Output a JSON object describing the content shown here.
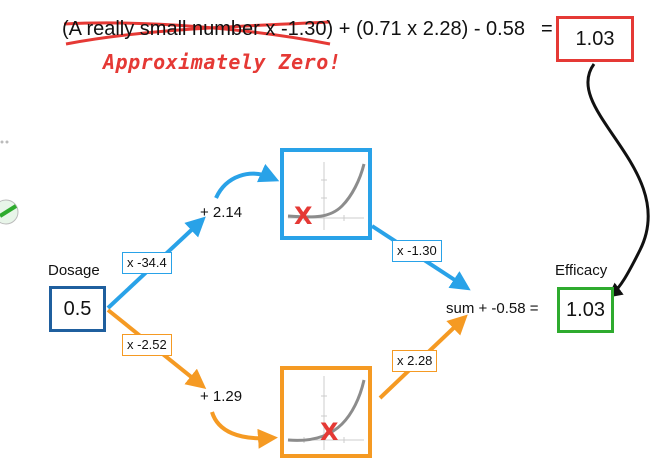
{
  "equation": {
    "struck_term": "(A really small number x -1.30)",
    "rest": " + (0.71 x 2.28) - 0.58",
    "equals": "=",
    "result": "1.03",
    "annotation": "Approximately Zero!"
  },
  "input": {
    "label": "Dosage",
    "value": "0.5"
  },
  "output": {
    "label": "Efficacy",
    "value": "1.03"
  },
  "weights": {
    "top_in": "x -34.4",
    "bottom_in": "x -2.52",
    "top_out": "x -1.30",
    "bottom_out": "x 2.28"
  },
  "biases": {
    "top": "+ 2.14",
    "bottom": "+ 1.29"
  },
  "sum_label": "sum + -0.58 =",
  "marker": "X",
  "colors": {
    "blue": "#29a2e8",
    "orange": "#f59a23",
    "red": "#e53935",
    "green": "#2eab2e",
    "dark_blue": "#1f5f9e",
    "curve_gray": "#8c8c8c"
  }
}
